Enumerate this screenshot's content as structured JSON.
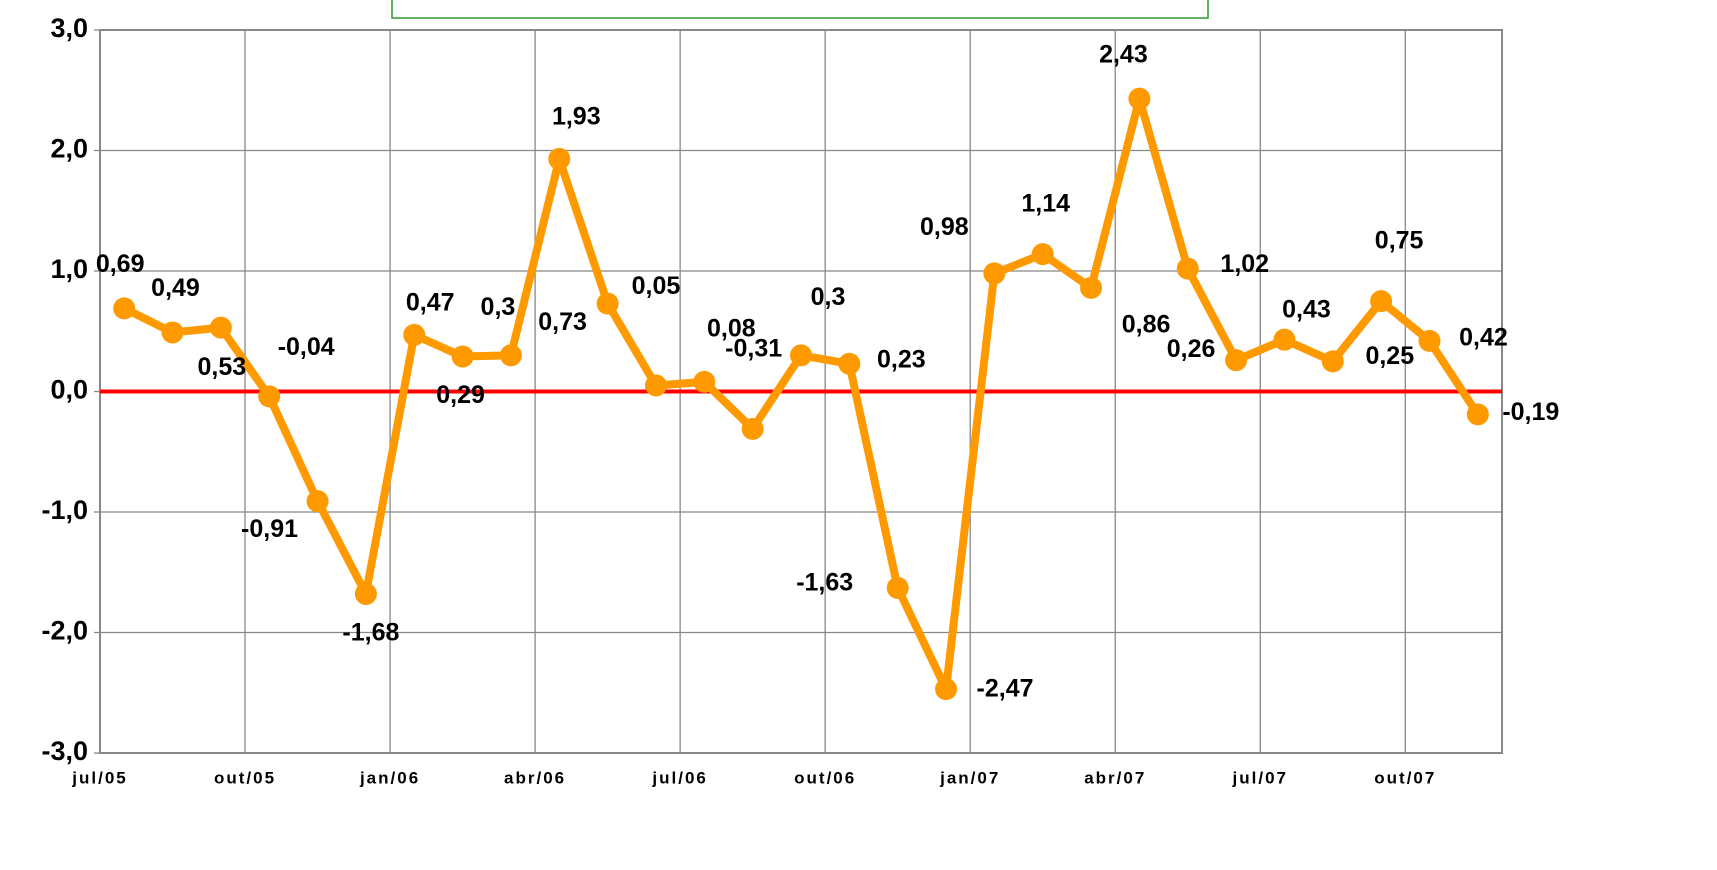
{
  "chart_data": {
    "type": "line",
    "categories": [
      "jul/05",
      null,
      null,
      "out/05",
      null,
      null,
      "jan/06",
      null,
      null,
      "abr/06",
      null,
      null,
      "jul/06",
      null,
      null,
      "out/06",
      null,
      null,
      "jan/07",
      null,
      null,
      "abr/07",
      null,
      null,
      "jul/07",
      null,
      null,
      "out/07",
      null
    ],
    "values": [
      0.69,
      0.49,
      0.53,
      -0.04,
      -0.91,
      -1.68,
      0.47,
      0.29,
      0.3,
      1.93,
      0.73,
      0.05,
      0.08,
      -0.31,
      0.3,
      0.23,
      -1.63,
      -2.47,
      0.98,
      1.14,
      0.86,
      2.43,
      1.02,
      0.26,
      0.43,
      0.25,
      0.75,
      0.42,
      -0.19
    ],
    "value_labels": [
      "0,69",
      "0,49",
      "0,53",
      "-0,04",
      "-0,91",
      "-1,68",
      "0,47",
      "0,29",
      "0,3",
      "1,93",
      "0,73",
      "0,05",
      "0,08",
      "-0,31",
      "0,3",
      "0,23",
      "-1,63",
      "-2,47",
      "0,98",
      "1,14",
      "0,86",
      "2,43",
      "1,02",
      "0,26",
      "0,43",
      "0,25",
      "0,75",
      "0,42",
      "-0,19"
    ],
    "color": "#ff9900",
    "ylim": [
      -3,
      3
    ],
    "yticks": [
      {
        "value": -3,
        "label": "-3,0"
      },
      {
        "value": -2,
        "label": "-2,0"
      },
      {
        "value": -1,
        "label": "-1,0"
      },
      {
        "value": 0,
        "label": "0,0"
      },
      {
        "value": 1,
        "label": "1,0"
      },
      {
        "value": 2,
        "label": "2,0"
      },
      {
        "value": 3,
        "label": "3,0"
      }
    ],
    "grid": true,
    "reference_line": {
      "value": 0,
      "color": "#ff0000"
    }
  }
}
